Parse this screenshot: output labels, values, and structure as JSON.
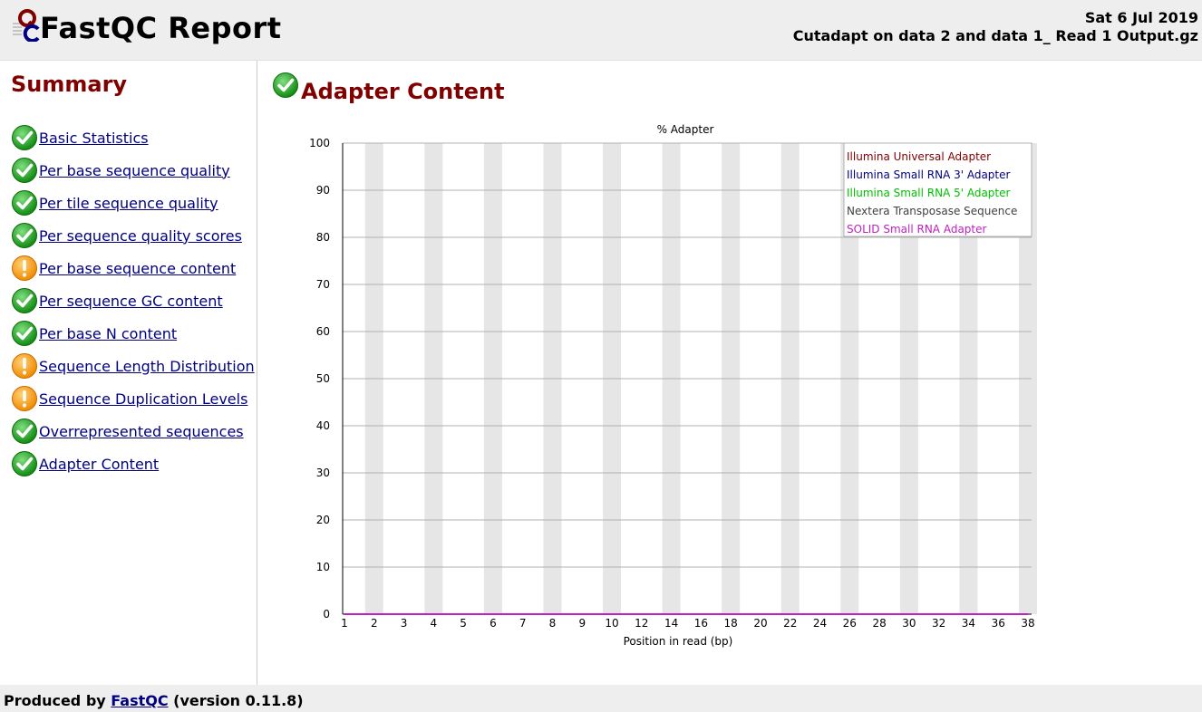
{
  "header": {
    "title": "FastQC Report",
    "date": "Sat 6 Jul 2019",
    "filename": "Cutadapt on data 2 and data 1_ Read 1 Output.gz"
  },
  "sidebar": {
    "title": "Summary",
    "items": [
      {
        "label": "Basic Statistics",
        "status": "pass"
      },
      {
        "label": "Per base sequence quality",
        "status": "pass"
      },
      {
        "label": "Per tile sequence quality",
        "status": "pass"
      },
      {
        "label": "Per sequence quality scores",
        "status": "pass"
      },
      {
        "label": "Per base sequence content",
        "status": "warn"
      },
      {
        "label": "Per sequence GC content",
        "status": "pass"
      },
      {
        "label": "Per base N content",
        "status": "pass"
      },
      {
        "label": "Sequence Length Distribution",
        "status": "warn"
      },
      {
        "label": "Sequence Duplication Levels",
        "status": "warn"
      },
      {
        "label": "Overrepresented sequences",
        "status": "pass"
      },
      {
        "label": "Adapter Content",
        "status": "pass"
      }
    ]
  },
  "main": {
    "section_title": "Adapter Content",
    "section_status": "pass"
  },
  "chart_data": {
    "type": "line",
    "title": "% Adapter",
    "xlabel": "Position in read (bp)",
    "ylabel": "",
    "ylim": [
      0,
      100
    ],
    "yticks": [
      0,
      10,
      20,
      30,
      40,
      50,
      60,
      70,
      80,
      90,
      100
    ],
    "x": [
      1,
      2,
      3,
      4,
      5,
      6,
      7,
      8,
      9,
      10,
      12,
      14,
      16,
      18,
      20,
      22,
      24,
      26,
      28,
      30,
      32,
      34,
      36,
      38
    ],
    "grid": true,
    "legend": "top-right",
    "series": [
      {
        "name": "Illumina Universal Adapter",
        "color": "#800000",
        "values": [
          0,
          0,
          0,
          0,
          0,
          0,
          0,
          0,
          0,
          0,
          0,
          0,
          0,
          0,
          0,
          0,
          0,
          0,
          0,
          0,
          0,
          0,
          0,
          0
        ]
      },
      {
        "name": "Illumina Small RNA 3' Adapter",
        "color": "#000080",
        "values": [
          0,
          0,
          0,
          0,
          0,
          0,
          0,
          0,
          0,
          0,
          0,
          0,
          0,
          0,
          0,
          0,
          0,
          0,
          0,
          0,
          0,
          0,
          0,
          0
        ]
      },
      {
        "name": "Illumina Small RNA 5' Adapter",
        "color": "#00c000",
        "values": [
          0,
          0,
          0,
          0,
          0,
          0,
          0,
          0,
          0,
          0,
          0,
          0,
          0,
          0,
          0,
          0,
          0,
          0,
          0,
          0,
          0,
          0,
          0,
          0
        ]
      },
      {
        "name": "Nextera Transposase Sequence",
        "color": "#404040",
        "values": [
          0,
          0,
          0,
          0,
          0,
          0,
          0,
          0,
          0,
          0,
          0,
          0,
          0,
          0,
          0,
          0,
          0,
          0,
          0,
          0,
          0,
          0,
          0,
          0
        ]
      },
      {
        "name": "SOLID Small RNA Adapter",
        "color": "#c020c0",
        "values": [
          0,
          0,
          0,
          0,
          0,
          0,
          0,
          0,
          0,
          0,
          0,
          0,
          0,
          0,
          0,
          0,
          0,
          0,
          0,
          0,
          0,
          0,
          0,
          0
        ]
      }
    ]
  },
  "footer": {
    "prefix": "Produced by",
    "link": "FastQC",
    "suffix": "(version 0.11.8)"
  },
  "colors": {
    "accent": "#800000",
    "link": "#000080",
    "band": "#e6e6e6"
  }
}
